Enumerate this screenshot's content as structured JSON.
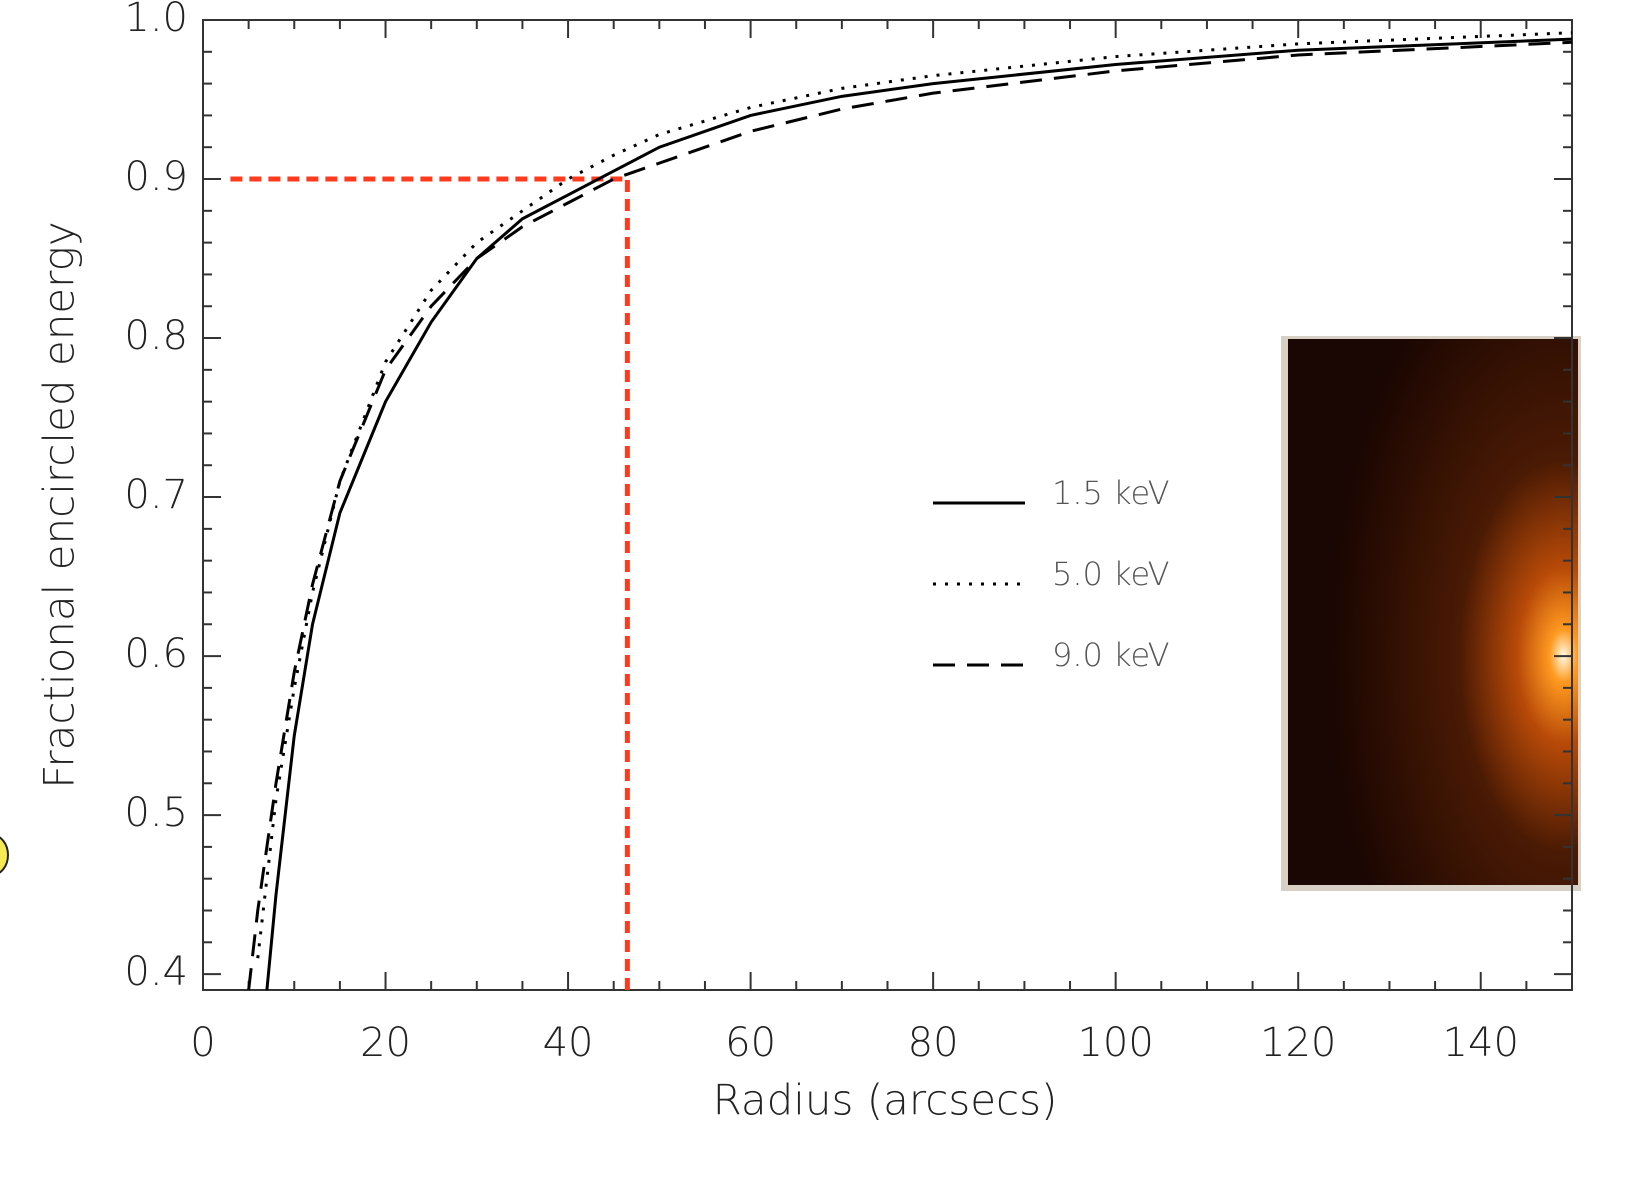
{
  "chart_data": {
    "type": "line",
    "xlabel": "Radius (arcsecs)",
    "ylabel": "Fractional encircled energy",
    "x": [
      5,
      6,
      7,
      8,
      10,
      12,
      15,
      20,
      25,
      30,
      35,
      40,
      45,
      50,
      60,
      70,
      80,
      100,
      120,
      150
    ],
    "series": [
      {
        "name": "1.5  keV",
        "color": "#000000",
        "dash": "solid",
        "values": [
          null,
          null,
          0.39,
          0.45,
          0.55,
          0.62,
          0.69,
          0.76,
          0.81,
          0.85,
          0.875,
          0.89,
          0.905,
          0.92,
          0.94,
          0.952,
          0.96,
          0.972,
          0.981,
          0.988
        ]
      },
      {
        "name": "5.0  keV",
        "color": "#000000",
        "dash": "dotted",
        "values": [
          null,
          0.41,
          0.46,
          0.51,
          0.58,
          0.64,
          0.71,
          0.785,
          0.83,
          0.86,
          0.88,
          0.9,
          0.915,
          0.928,
          0.945,
          0.957,
          0.965,
          0.977,
          0.985,
          0.992
        ]
      },
      {
        "name": "9.0  keV",
        "color": "#000000",
        "dash": "dashed",
        "values": [
          0.39,
          0.44,
          0.48,
          0.52,
          0.59,
          0.645,
          0.71,
          0.78,
          0.82,
          0.85,
          0.87,
          0.885,
          0.9,
          0.91,
          0.93,
          0.944,
          0.954,
          0.968,
          0.978,
          0.986
        ]
      }
    ],
    "hline": {
      "y": 0.9,
      "x": [
        3,
        46.5
      ],
      "color": "#ff3b1f"
    },
    "vline": {
      "x": 46.5,
      "y": [
        0.39,
        0.9
      ],
      "color": "#ff3b1f"
    },
    "xlim": [
      0,
      150
    ],
    "ylim": [
      0.39,
      1.0
    ],
    "xticks": [
      0,
      20,
      40,
      60,
      80,
      100,
      120,
      140
    ],
    "yticks": [
      {
        "value": 0.4,
        "label": "0.4"
      },
      {
        "value": 0.5,
        "label": "0.5"
      },
      {
        "value": 0.6,
        "label": "0.6"
      },
      {
        "value": 0.7,
        "label": "0.7"
      },
      {
        "value": 0.8,
        "label": "0.8"
      },
      {
        "value": 0.9,
        "label": "0.9"
      },
      {
        "value": 1.0,
        "label": "1.0"
      }
    ],
    "xminor_ticks": [
      5,
      10,
      15,
      25,
      30,
      35,
      45,
      50,
      55,
      65,
      70,
      75,
      85,
      90,
      95,
      105,
      110,
      115,
      125,
      130,
      135,
      145,
      150
    ],
    "yminor_ticks": [
      0.42,
      0.44,
      0.46,
      0.48,
      0.52,
      0.54,
      0.56,
      0.58,
      0.62,
      0.64,
      0.66,
      0.68,
      0.72,
      0.74,
      0.76,
      0.78,
      0.82,
      0.84,
      0.86,
      0.88,
      0.92,
      0.94,
      0.96,
      0.98
    ]
  }
}
